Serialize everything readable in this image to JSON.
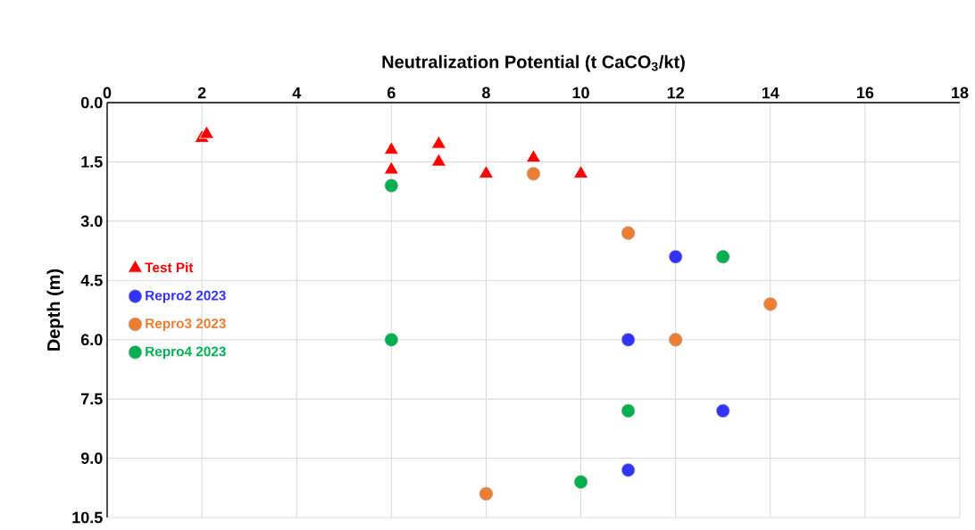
{
  "chart_data": {
    "type": "scatter",
    "xlabel": "Neutralization Potential (t CaCO$_{3}$/kt)",
    "ylabel": "Depth (m)",
    "xlim": [
      0,
      18
    ],
    "xticks": [
      0,
      2,
      4,
      6,
      8,
      10,
      12,
      14,
      16,
      18
    ],
    "ylim": [
      10.5,
      0
    ],
    "yticks": [
      {
        "value": 0,
        "label": "0.0"
      },
      {
        "value": 1.5,
        "label": "1.5"
      },
      {
        "value": 3,
        "label": "3.0"
      },
      {
        "value": 4.5,
        "label": "4.5"
      },
      {
        "value": 6,
        "label": "6.0"
      },
      {
        "value": 7.5,
        "label": "7.5"
      },
      {
        "value": 9,
        "label": "9.0"
      },
      {
        "value": 10.5,
        "label": "10.5"
      }
    ],
    "grid": true,
    "legend": "left",
    "series": [
      {
        "name": "Test Pit",
        "color": "#ff0000",
        "marker": "triangle",
        "x": [
          2,
          2.1,
          6,
          6,
          7,
          7,
          8,
          9,
          10
        ],
        "values": [
          0.9,
          0.8,
          1.2,
          1.7,
          1.05,
          1.5,
          1.8,
          1.4,
          1.8
        ]
      },
      {
        "name": "Repro2 2023",
        "color": "#3333ff",
        "marker": "circle",
        "x": [
          12,
          11,
          13,
          11
        ],
        "values": [
          3.9,
          6.0,
          7.8,
          9.3
        ]
      },
      {
        "name": "Repro3 2023",
        "color": "#ed7d31",
        "marker": "circle",
        "x": [
          9,
          11,
          14,
          12,
          8
        ],
        "values": [
          1.8,
          3.3,
          5.1,
          6.0,
          9.9
        ]
      },
      {
        "name": "Repro4 2023",
        "color": "#00b050",
        "marker": "circle",
        "x": [
          6,
          13,
          6,
          11,
          10
        ],
        "values": [
          2.1,
          3.9,
          6.0,
          7.8,
          9.6
        ]
      }
    ]
  }
}
